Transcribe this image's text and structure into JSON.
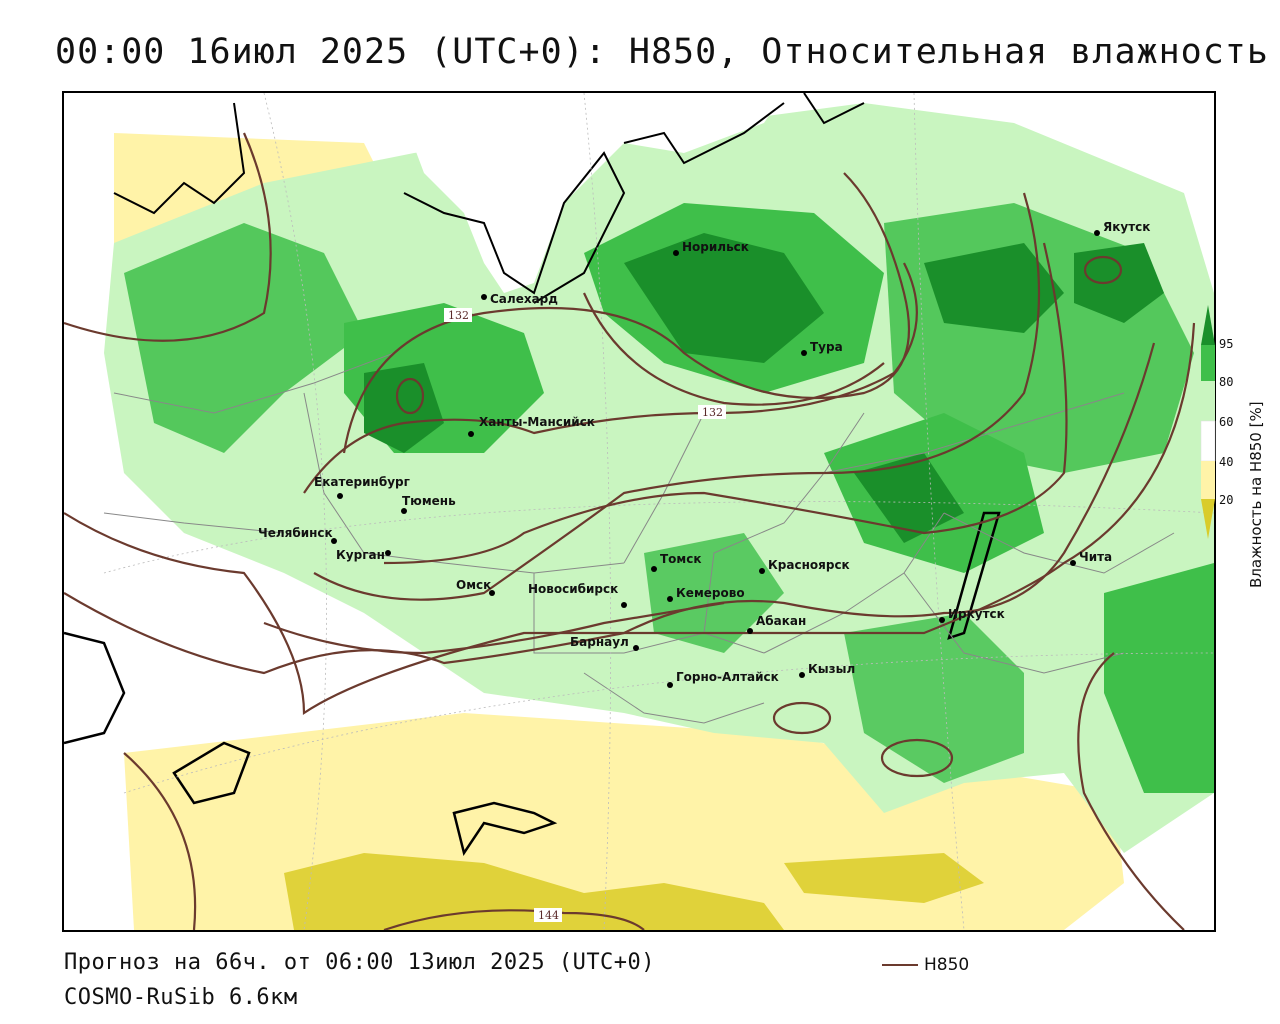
{
  "title": "00:00 16июл 2025 (UTC+0): H850, Относительная влажность",
  "forecast_line": "Прогноз на 66ч. от 06:00 13июл 2025 (UTC+0)",
  "model_line": "COSMO-RuSib 6.6км",
  "contour_key": {
    "label": "H850",
    "color": "#6b3a2e"
  },
  "legend": {
    "title": "Влажность на H850 [%]",
    "ticks": [
      "95",
      "80",
      "60",
      "40",
      "20"
    ],
    "colors": {
      "95": "#1a8f2a",
      "80": "#3fbf4a",
      "60": "#c9f5c0",
      "40": "#ffffff",
      "20": "#fff3a8",
      "low": "#d9cc2a"
    }
  },
  "contour_labels": [
    "132",
    "132",
    "144"
  ],
  "cities": [
    {
      "name": "Якутск"
    },
    {
      "name": "Норильск"
    },
    {
      "name": "Салехард"
    },
    {
      "name": "Тура"
    },
    {
      "name": "Ханты-Мансийск"
    },
    {
      "name": "Екатеринбург"
    },
    {
      "name": "Тюмень"
    },
    {
      "name": "Челябинск"
    },
    {
      "name": "Курган"
    },
    {
      "name": "Омск"
    },
    {
      "name": "Новосибирск"
    },
    {
      "name": "Томск"
    },
    {
      "name": "Кемерово"
    },
    {
      "name": "Красноярск"
    },
    {
      "name": "Абакан"
    },
    {
      "name": "Барнаул"
    },
    {
      "name": "Горно-Алтайск"
    },
    {
      "name": "Кызыл"
    },
    {
      "name": "Иркутск"
    },
    {
      "name": "Чита"
    }
  ]
}
